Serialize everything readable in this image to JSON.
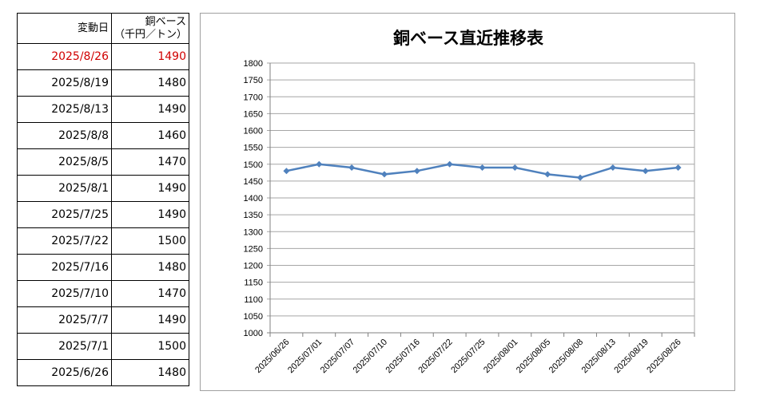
{
  "table": {
    "header_date": "変動日",
    "header_value_line1": "銅ベース",
    "header_value_line2": "（千円／トン）",
    "highlight_color": "#d00000",
    "rows": [
      {
        "date": "2025/8/26",
        "value": "1490",
        "highlight": true
      },
      {
        "date": "2025/8/19",
        "value": "1480"
      },
      {
        "date": "2025/8/13",
        "value": "1490"
      },
      {
        "date": "2025/8/8",
        "value": "1460"
      },
      {
        "date": "2025/8/5",
        "value": "1470"
      },
      {
        "date": "2025/8/1",
        "value": "1490"
      },
      {
        "date": "2025/7/25",
        "value": "1490"
      },
      {
        "date": "2025/7/22",
        "value": "1500"
      },
      {
        "date": "2025/7/16",
        "value": "1480"
      },
      {
        "date": "2025/7/10",
        "value": "1470"
      },
      {
        "date": "2025/7/7",
        "value": "1490"
      },
      {
        "date": "2025/7/1",
        "value": "1500"
      },
      {
        "date": "2025/6/26",
        "value": "1480"
      }
    ]
  },
  "chart_data": {
    "type": "line",
    "title": "銅ベース直近推移表",
    "categories": [
      "2025/06/26",
      "2025/07/01",
      "2025/07/07",
      "2025/07/10",
      "2025/07/16",
      "2025/07/22",
      "2025/07/25",
      "2025/08/01",
      "2025/08/05",
      "2025/08/08",
      "2025/08/13",
      "2025/08/19",
      "2025/08/26"
    ],
    "series": [
      {
        "values": [
          1480,
          1500,
          1490,
          1470,
          1480,
          1500,
          1490,
          1490,
          1470,
          1460,
          1490,
          1480,
          1490
        ],
        "color": "#4f81bd"
      }
    ],
    "ylim": [
      1000,
      1800
    ],
    "ytick_step": 50,
    "grid": true,
    "legend": "none",
    "xlabel": "",
    "ylabel": ""
  }
}
